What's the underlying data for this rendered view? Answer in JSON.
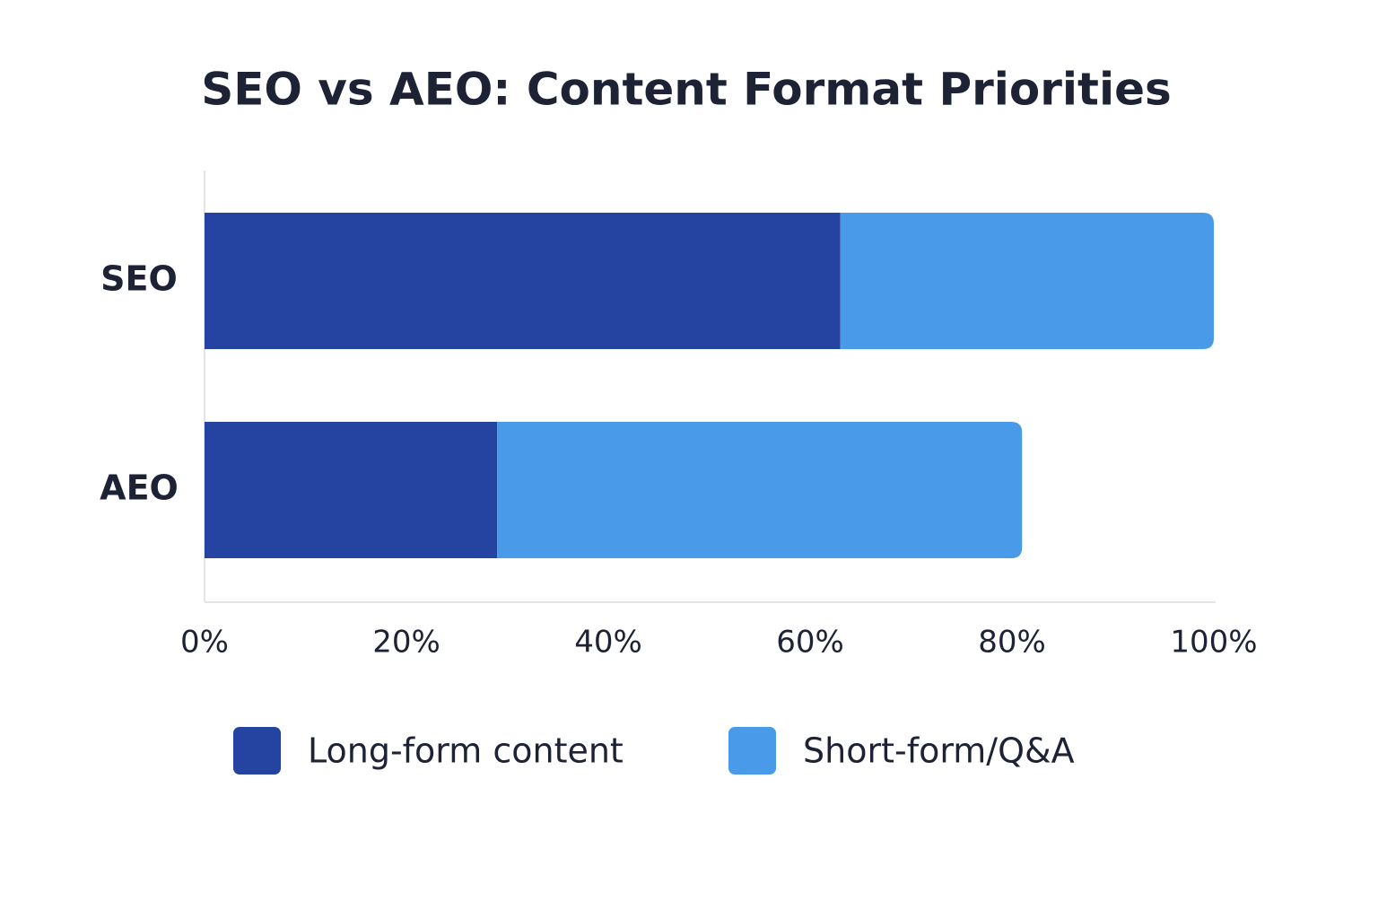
{
  "chart_data": {
    "type": "stacked-bar-horizontal",
    "title": "SEO vs AEO: Content Format Priorities",
    "categories": [
      "SEO",
      "AEO"
    ],
    "series": [
      {
        "name": "Long-form content",
        "color": "#2543a0",
        "values": [
          63,
          29
        ]
      },
      {
        "name": "Short-form/Q&A",
        "color": "#4a9aea",
        "values": [
          37,
          52
        ]
      }
    ],
    "xlim": [
      0,
      100
    ],
    "xticks": [
      {
        "value": 0,
        "label": "0%"
      },
      {
        "value": 20,
        "label": "20%"
      },
      {
        "value": 40,
        "label": "40%"
      },
      {
        "value": 60,
        "label": "60%"
      },
      {
        "value": 80,
        "label": "80%"
      },
      {
        "value": 100,
        "label": "100%"
      }
    ],
    "legend": "bottom"
  }
}
